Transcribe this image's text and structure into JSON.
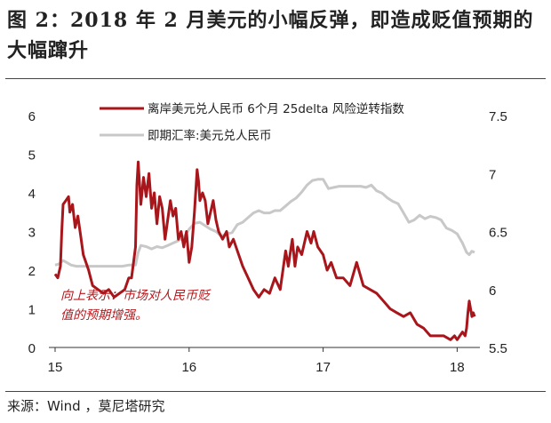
{
  "figure": {
    "title": "图 2：2018 年 2 月美元的小幅反弹，即造成贬值预期的大幅蹿升",
    "source": "来源：Wind ，莫尼塔研究"
  },
  "colors": {
    "primary": "#a8161b",
    "secondary": "#c8c8c8",
    "axis": "#333333"
  },
  "chart_data": {
    "type": "line",
    "title": "",
    "xlabel": "",
    "ylabel": "",
    "xlim": [
      2015.0,
      2018.13
    ],
    "x_ticks": [
      15,
      16,
      17,
      18
    ],
    "ylim_left": [
      0,
      6
    ],
    "y_ticks_left": [
      0,
      1,
      2,
      3,
      4,
      5,
      6
    ],
    "ylim_right": [
      5.5,
      7.5
    ],
    "y_ticks_right": [
      "5.5",
      "6",
      "6.5",
      "7",
      "7.5"
    ],
    "legend": {
      "placement": "top",
      "entries": [
        "离岸美元兑人民币 6个月 25delta 风险逆转指数",
        "即期汇率:美元兑人民币"
      ]
    },
    "annotation": {
      "lines": [
        "向上表示：市场对人民币贬",
        "值的预期增强。"
      ]
    },
    "grid": false,
    "series": [
      {
        "name": "离岸美元兑人民币 6个月 25delta 风险逆转指数",
        "axis": "left",
        "color": "#a8161b",
        "points": [
          [
            2015.0,
            1.9
          ],
          [
            2015.02,
            1.8
          ],
          [
            2015.04,
            2.1
          ],
          [
            2015.05,
            3.0
          ],
          [
            2015.06,
            3.7
          ],
          [
            2015.08,
            3.8
          ],
          [
            2015.1,
            3.9
          ],
          [
            2015.11,
            3.5
          ],
          [
            2015.13,
            3.7
          ],
          [
            2015.15,
            3.1
          ],
          [
            2015.17,
            3.4
          ],
          [
            2015.19,
            2.9
          ],
          [
            2015.21,
            2.4
          ],
          [
            2015.23,
            2.2
          ],
          [
            2015.25,
            2.0
          ],
          [
            2015.28,
            1.6
          ],
          [
            2015.32,
            1.5
          ],
          [
            2015.36,
            1.4
          ],
          [
            2015.4,
            1.5
          ],
          [
            2015.44,
            1.3
          ],
          [
            2015.48,
            1.4
          ],
          [
            2015.52,
            1.5
          ],
          [
            2015.55,
            1.8
          ],
          [
            2015.57,
            1.8
          ],
          [
            2015.6,
            2.6
          ],
          [
            2015.61,
            4.2
          ],
          [
            2015.62,
            4.8
          ],
          [
            2015.64,
            3.7
          ],
          [
            2015.66,
            4.4
          ],
          [
            2015.68,
            3.9
          ],
          [
            2015.7,
            4.5
          ],
          [
            2015.72,
            3.6
          ],
          [
            2015.74,
            4.0
          ],
          [
            2015.76,
            3.2
          ],
          [
            2015.78,
            3.9
          ],
          [
            2015.8,
            3.6
          ],
          [
            2015.82,
            2.8
          ],
          [
            2015.84,
            3.3
          ],
          [
            2015.86,
            3.8
          ],
          [
            2015.88,
            3.4
          ],
          [
            2015.9,
            3.6
          ],
          [
            2015.92,
            2.8
          ],
          [
            2015.94,
            3.0
          ],
          [
            2015.96,
            2.6
          ],
          [
            2015.98,
            3.0
          ],
          [
            2016.0,
            2.2
          ],
          [
            2016.02,
            2.6
          ],
          [
            2016.04,
            3.5
          ],
          [
            2016.06,
            4.6
          ],
          [
            2016.07,
            4.3
          ],
          [
            2016.08,
            3.8
          ],
          [
            2016.1,
            4.0
          ],
          [
            2016.12,
            3.8
          ],
          [
            2016.14,
            3.2
          ],
          [
            2016.16,
            3.5
          ],
          [
            2016.18,
            3.8
          ],
          [
            2016.2,
            3.3
          ],
          [
            2016.22,
            3.0
          ],
          [
            2016.25,
            2.8
          ],
          [
            2016.28,
            3.0
          ],
          [
            2016.3,
            2.6
          ],
          [
            2016.33,
            2.8
          ],
          [
            2016.36,
            2.5
          ],
          [
            2016.4,
            2.1
          ],
          [
            2016.44,
            1.8
          ],
          [
            2016.48,
            1.5
          ],
          [
            2016.52,
            1.3
          ],
          [
            2016.56,
            1.5
          ],
          [
            2016.6,
            1.4
          ],
          [
            2016.64,
            1.8
          ],
          [
            2016.68,
            1.5
          ],
          [
            2016.72,
            2.5
          ],
          [
            2016.74,
            2.1
          ],
          [
            2016.77,
            2.8
          ],
          [
            2016.79,
            2.1
          ],
          [
            2016.81,
            2.6
          ],
          [
            2016.84,
            2.4
          ],
          [
            2016.88,
            3.0
          ],
          [
            2016.91,
            2.7
          ],
          [
            2016.93,
            3.0
          ],
          [
            2016.96,
            2.6
          ],
          [
            2017.0,
            2.4
          ],
          [
            2017.03,
            2.0
          ],
          [
            2017.06,
            2.2
          ],
          [
            2017.1,
            1.8
          ],
          [
            2017.15,
            1.8
          ],
          [
            2017.2,
            1.6
          ],
          [
            2017.25,
            2.2
          ],
          [
            2017.3,
            1.6
          ],
          [
            2017.35,
            1.5
          ],
          [
            2017.4,
            1.4
          ],
          [
            2017.45,
            1.2
          ],
          [
            2017.5,
            1.0
          ],
          [
            2017.55,
            0.9
          ],
          [
            2017.6,
            0.8
          ],
          [
            2017.65,
            0.9
          ],
          [
            2017.7,
            0.6
          ],
          [
            2017.75,
            0.5
          ],
          [
            2017.8,
            0.3
          ],
          [
            2017.85,
            0.3
          ],
          [
            2017.9,
            0.3
          ],
          [
            2017.95,
            0.2
          ],
          [
            2017.98,
            0.3
          ],
          [
            2018.0,
            0.2
          ],
          [
            2018.02,
            0.3
          ],
          [
            2018.04,
            0.4
          ],
          [
            2018.06,
            0.3
          ],
          [
            2018.07,
            0.5
          ],
          [
            2018.08,
            0.9
          ],
          [
            2018.09,
            1.2
          ],
          [
            2018.1,
            1.0
          ],
          [
            2018.11,
            0.8
          ],
          [
            2018.12,
            0.9
          ],
          [
            2018.13,
            0.8
          ]
        ]
      },
      {
        "name": "即期汇率:美元兑人民币",
        "axis": "right",
        "color": "#c8c8c8",
        "points": [
          [
            2015.0,
            6.21
          ],
          [
            2015.03,
            6.22
          ],
          [
            2015.06,
            6.25
          ],
          [
            2015.09,
            6.23
          ],
          [
            2015.12,
            6.21
          ],
          [
            2015.16,
            6.2
          ],
          [
            2015.2,
            6.2
          ],
          [
            2015.25,
            6.2
          ],
          [
            2015.3,
            6.2
          ],
          [
            2015.35,
            6.2
          ],
          [
            2015.4,
            6.2
          ],
          [
            2015.45,
            6.2
          ],
          [
            2015.5,
            6.2
          ],
          [
            2015.55,
            6.21
          ],
          [
            2015.6,
            6.21
          ],
          [
            2015.62,
            6.32
          ],
          [
            2015.64,
            6.38
          ],
          [
            2015.68,
            6.37
          ],
          [
            2015.72,
            6.35
          ],
          [
            2015.76,
            6.37
          ],
          [
            2015.8,
            6.36
          ],
          [
            2015.84,
            6.38
          ],
          [
            2015.88,
            6.4
          ],
          [
            2015.92,
            6.42
          ],
          [
            2015.96,
            6.45
          ],
          [
            2016.0,
            6.52
          ],
          [
            2016.04,
            6.57
          ],
          [
            2016.08,
            6.58
          ],
          [
            2016.12,
            6.55
          ],
          [
            2016.16,
            6.52
          ],
          [
            2016.2,
            6.5
          ],
          [
            2016.24,
            6.46
          ],
          [
            2016.28,
            6.48
          ],
          [
            2016.32,
            6.49
          ],
          [
            2016.36,
            6.56
          ],
          [
            2016.4,
            6.58
          ],
          [
            2016.44,
            6.62
          ],
          [
            2016.48,
            6.66
          ],
          [
            2016.52,
            6.68
          ],
          [
            2016.56,
            6.66
          ],
          [
            2016.6,
            6.66
          ],
          [
            2016.64,
            6.68
          ],
          [
            2016.68,
            6.68
          ],
          [
            2016.72,
            6.72
          ],
          [
            2016.76,
            6.76
          ],
          [
            2016.8,
            6.79
          ],
          [
            2016.84,
            6.84
          ],
          [
            2016.88,
            6.9
          ],
          [
            2016.92,
            6.94
          ],
          [
            2016.96,
            6.95
          ],
          [
            2017.0,
            6.95
          ],
          [
            2017.04,
            6.87
          ],
          [
            2017.08,
            6.88
          ],
          [
            2017.12,
            6.89
          ],
          [
            2017.16,
            6.89
          ],
          [
            2017.2,
            6.89
          ],
          [
            2017.24,
            6.89
          ],
          [
            2017.28,
            6.89
          ],
          [
            2017.32,
            6.88
          ],
          [
            2017.36,
            6.9
          ],
          [
            2017.4,
            6.85
          ],
          [
            2017.44,
            6.83
          ],
          [
            2017.48,
            6.79
          ],
          [
            2017.52,
            6.76
          ],
          [
            2017.56,
            6.74
          ],
          [
            2017.6,
            6.66
          ],
          [
            2017.64,
            6.58
          ],
          [
            2017.68,
            6.6
          ],
          [
            2017.72,
            6.64
          ],
          [
            2017.76,
            6.61
          ],
          [
            2017.8,
            6.63
          ],
          [
            2017.84,
            6.62
          ],
          [
            2017.88,
            6.6
          ],
          [
            2017.92,
            6.53
          ],
          [
            2017.96,
            6.51
          ],
          [
            2018.0,
            6.48
          ],
          [
            2018.04,
            6.4
          ],
          [
            2018.07,
            6.32
          ],
          [
            2018.09,
            6.3
          ],
          [
            2018.11,
            6.33
          ],
          [
            2018.13,
            6.32
          ]
        ]
      }
    ]
  }
}
